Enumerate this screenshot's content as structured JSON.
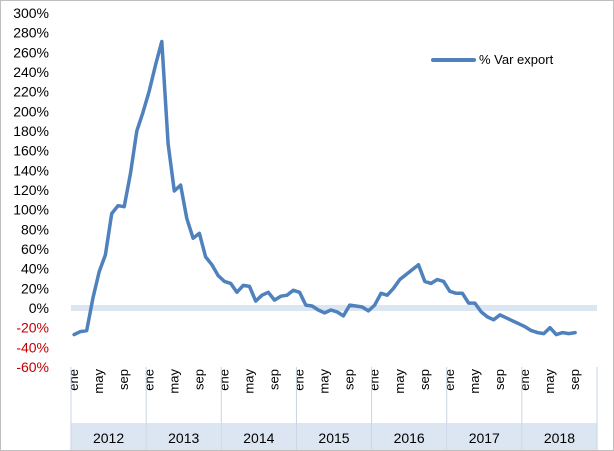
{
  "chart_data": {
    "type": "line",
    "title": "",
    "xlabel": "",
    "ylabel": "",
    "ylim": [
      -0.6,
      3.0
    ],
    "y_tick_step": 0.2,
    "y_tick_format": "percent",
    "negative_tick_color": "#c00000",
    "positive_tick_color": "#000000",
    "zero_band_color": "#dce6f2",
    "series_color": "#4f81bd",
    "year_band_color": "#dce6f2",
    "grid": false,
    "legend_position": "top-right",
    "years": [
      "2012",
      "2013",
      "2014",
      "2015",
      "2016",
      "2017",
      "2018"
    ],
    "month_tick_labels": [
      "ene",
      "may",
      "sep"
    ],
    "series": [
      {
        "name": "% Var export",
        "values": [
          -0.27,
          -0.24,
          -0.23,
          0.1,
          0.37,
          0.54,
          0.96,
          1.04,
          1.03,
          1.37,
          1.8,
          1.99,
          2.21,
          2.47,
          2.71,
          1.67,
          1.19,
          1.25,
          0.91,
          0.71,
          0.76,
          0.52,
          0.44,
          0.33,
          0.27,
          0.25,
          0.16,
          0.23,
          0.22,
          0.07,
          0.13,
          0.16,
          0.08,
          0.12,
          0.13,
          0.18,
          0.16,
          0.03,
          0.02,
          -0.02,
          -0.05,
          -0.02,
          -0.04,
          -0.08,
          0.03,
          0.02,
          0.01,
          -0.03,
          0.03,
          0.15,
          0.13,
          0.2,
          0.29,
          0.34,
          0.39,
          0.44,
          0.27,
          0.25,
          0.29,
          0.27,
          0.17,
          0.15,
          0.15,
          0.05,
          0.05,
          -0.04,
          -0.09,
          -0.12,
          -0.07,
          -0.1,
          -0.13,
          -0.16,
          -0.19,
          -0.23,
          -0.25,
          -0.26,
          -0.2,
          -0.27,
          -0.25,
          -0.26,
          -0.25
        ]
      }
    ]
  }
}
